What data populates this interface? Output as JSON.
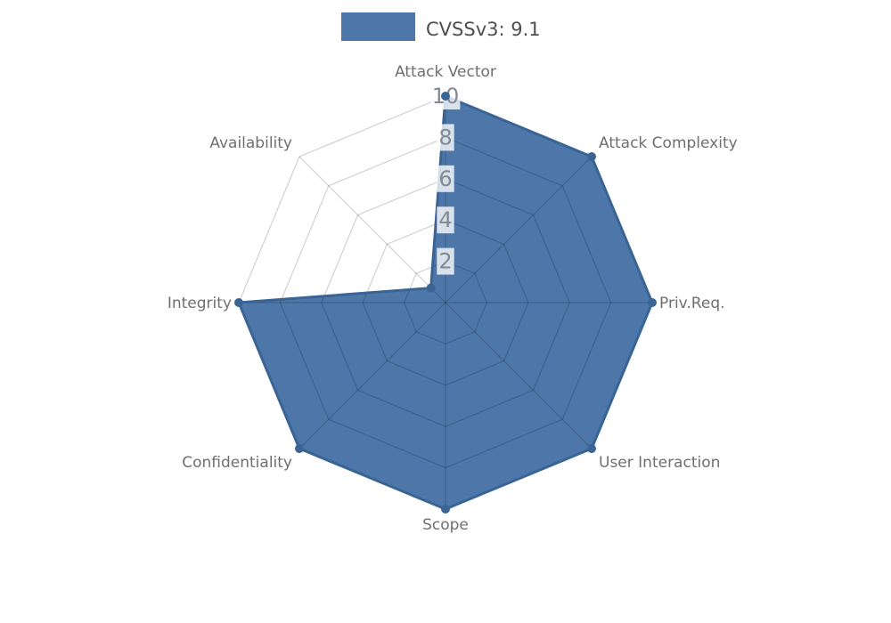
{
  "legend": {
    "label": "CVSSv3: 9.1",
    "swatch_color": "#4d77a8"
  },
  "chart_data": {
    "type": "radar",
    "title": "",
    "categories": [
      "Attack Vector",
      "Attack Complexity",
      "Priv.Req.",
      "User Interaction",
      "Scope",
      "Confidentiality",
      "Integrity",
      "Availability"
    ],
    "series": [
      {
        "name": "CVSSv3: 9.1",
        "values": [
          10,
          10,
          10,
          10,
          10,
          10,
          10,
          1
        ]
      }
    ],
    "rmin": 0,
    "rmax": 10,
    "ticks": [
      2,
      4,
      6,
      8,
      10
    ],
    "grid": "on",
    "grid_shape": "polygon",
    "legend_position": "top-center",
    "colors": {
      "fill": "#4d77a8",
      "border": "#3a6494",
      "point": "#3a6494",
      "grid": "rgba(0,0,0,0.18)",
      "axis_label": "#6f6f6f",
      "tick_label": "#828a94",
      "tick_backdrop": "rgba(255,255,255,0.78)",
      "legend_text": "#4f4f4f"
    }
  }
}
